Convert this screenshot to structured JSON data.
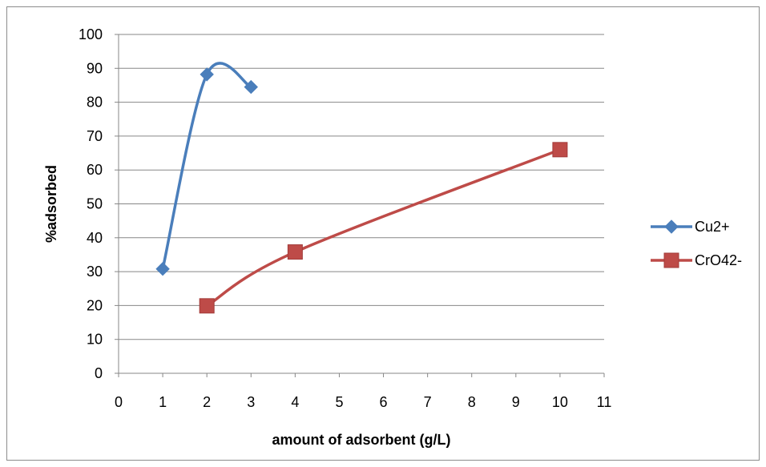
{
  "chart_data": {
    "type": "scatter",
    "title": "",
    "xlabel": "amount of adsorbent (g/L)",
    "ylabel": "%adsorbed",
    "xlim": [
      0,
      11
    ],
    "ylim": [
      0,
      100
    ],
    "x_ticks": [
      0,
      1,
      2,
      3,
      4,
      5,
      6,
      7,
      8,
      9,
      10,
      11
    ],
    "y_ticks": [
      0,
      10,
      20,
      30,
      40,
      50,
      60,
      70,
      80,
      90,
      100
    ],
    "grid": "horizontal",
    "legend_position": "right",
    "smooth_lines": true,
    "series": [
      {
        "name": "Cu2+",
        "color": "#4a7ebb",
        "marker": "diamond",
        "x": [
          1,
          2,
          3
        ],
        "y": [
          30.8,
          88.2,
          84.5
        ]
      },
      {
        "name": "CrO42-",
        "color": "#be4b48",
        "marker": "square",
        "x": [
          2,
          4,
          10
        ],
        "y": [
          19.9,
          35.8,
          66.0
        ]
      }
    ]
  }
}
